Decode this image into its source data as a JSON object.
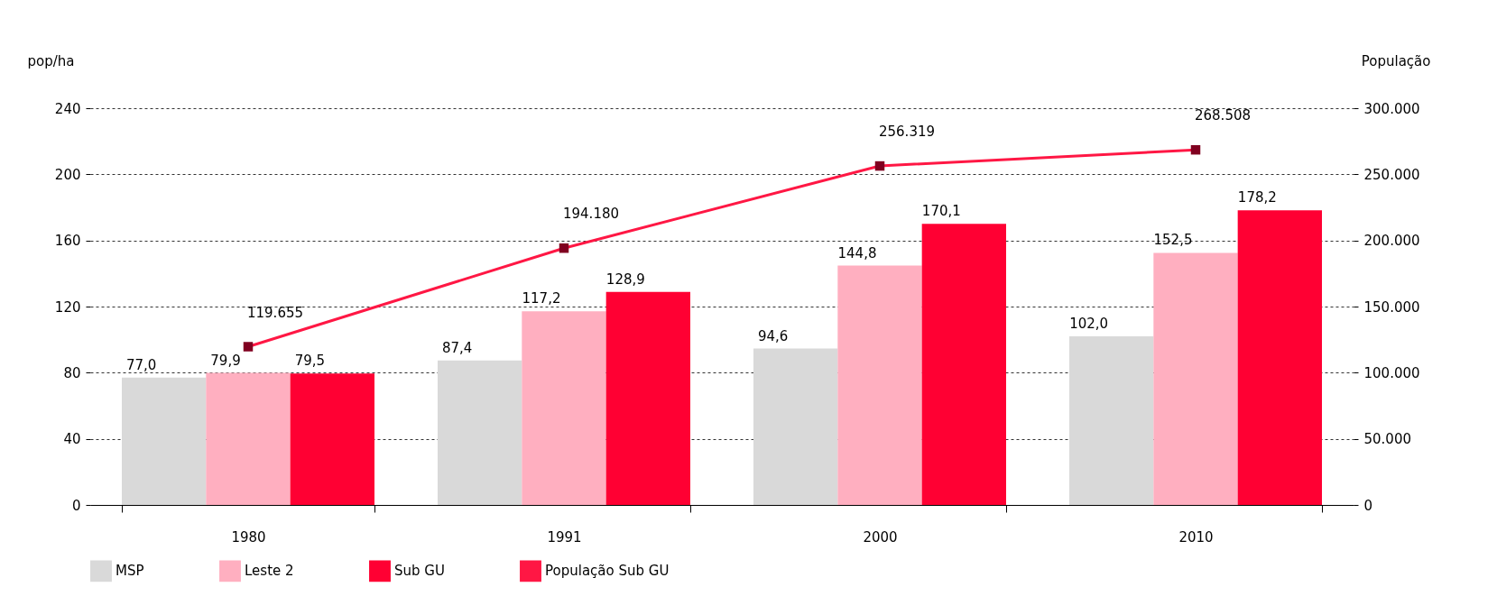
{
  "chart_data": {
    "type": "bar",
    "ylabel": "pop/ha",
    "y2label": "População",
    "categories": [
      "1980",
      "1991",
      "2000",
      "2010"
    ],
    "series": [
      {
        "name": "MSP",
        "color": "#d9d9d9",
        "values": [
          77.0,
          87.4,
          94.6,
          102.0
        ],
        "value_labels": [
          "77,0",
          "87,4",
          "94,6",
          "102,0"
        ]
      },
      {
        "name": "Leste 2",
        "color": "#ffafc0",
        "values": [
          79.9,
          117.2,
          144.8,
          152.5
        ],
        "value_labels": [
          "79,9",
          "117,2",
          "144,8",
          "152,5"
        ]
      },
      {
        "name": "Sub GU",
        "color": "#ff0033",
        "values": [
          79.5,
          128.9,
          170.1,
          178.2
        ],
        "value_labels": [
          "79,5",
          "128,9",
          "170,1",
          "178,2"
        ]
      },
      {
        "name": "População Sub GU",
        "type": "line",
        "axis": "y2",
        "color": "#ff1744",
        "values": [
          119655,
          194180,
          256319,
          268508
        ],
        "value_labels": [
          "119.655",
          "194.180",
          "256.319",
          "268.508"
        ]
      }
    ],
    "ylim": [
      0,
      240
    ],
    "yticks": [
      0,
      40,
      80,
      120,
      160,
      200,
      240
    ],
    "y2lim": [
      0,
      300000
    ],
    "y2ticks": [
      0,
      {
        "value": 50000,
        "label": "50.000"
      },
      {
        "value": 100000,
        "label": "100.000"
      },
      {
        "value": 150000,
        "label": "150.000"
      },
      {
        "value": 200000,
        "label": "200.000"
      },
      {
        "value": 250000,
        "label": "250.000"
      },
      {
        "value": 300000,
        "label": "300.000"
      }
    ],
    "grid": "y",
    "legend": "bottom",
    "marker": "square"
  }
}
